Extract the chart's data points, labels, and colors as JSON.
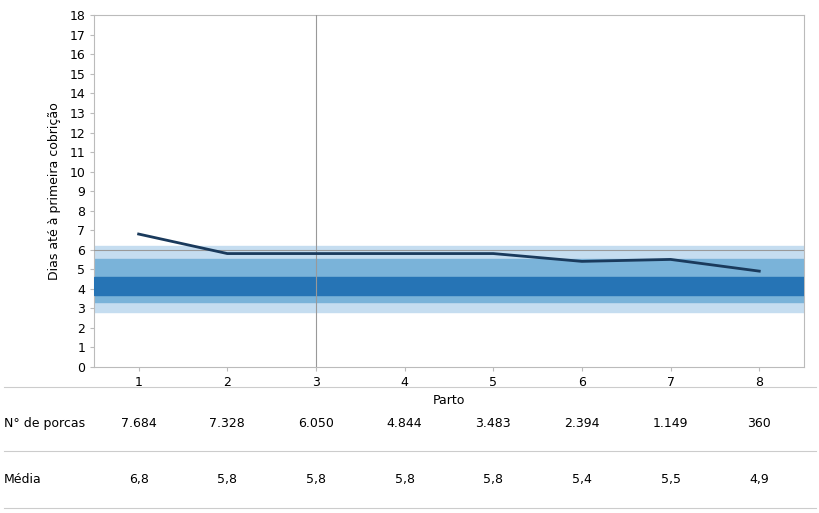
{
  "x": [
    1,
    2,
    3,
    4,
    5,
    6,
    7,
    8
  ],
  "y_line": [
    6.8,
    5.8,
    5.8,
    5.8,
    5.8,
    5.4,
    5.5,
    4.9
  ],
  "y_hline": 6.0,
  "band1_low": 2.8,
  "band1_high": 6.2,
  "band2_low": 3.3,
  "band2_high": 5.5,
  "band3_low": 3.7,
  "band3_high": 4.6,
  "vline_x": 3,
  "xlabel": "Parto",
  "ylabel": "Dias até à primeira cobrição",
  "ylim": [
    0,
    18
  ],
  "yticks": [
    0,
    1,
    2,
    3,
    4,
    5,
    6,
    7,
    8,
    9,
    10,
    11,
    12,
    13,
    14,
    15,
    16,
    17,
    18
  ],
  "xticks": [
    1,
    2,
    3,
    4,
    5,
    6,
    7,
    8
  ],
  "line_color": "#1a3a5c",
  "band1_color": "#c5ddf0",
  "band2_color": "#7ab3d9",
  "band3_color": "#2674b5",
  "hline_color": "#999999",
  "vline_color": "#999999",
  "bg_color": "#ffffff",
  "n_porcas_label": "N° de porcas",
  "media_label": "Média",
  "n_porcas": [
    "7.684",
    "7.328",
    "6.050",
    "4.844",
    "3.483",
    "2.394",
    "1.149",
    "360"
  ],
  "media": [
    "6,8",
    "5,8",
    "5,8",
    "5,8",
    "5,8",
    "5,4",
    "5,5",
    "4,9"
  ],
  "table_fontsize": 9.0,
  "axis_fontsize": 9.0,
  "ylabel_fontsize": 9.0
}
